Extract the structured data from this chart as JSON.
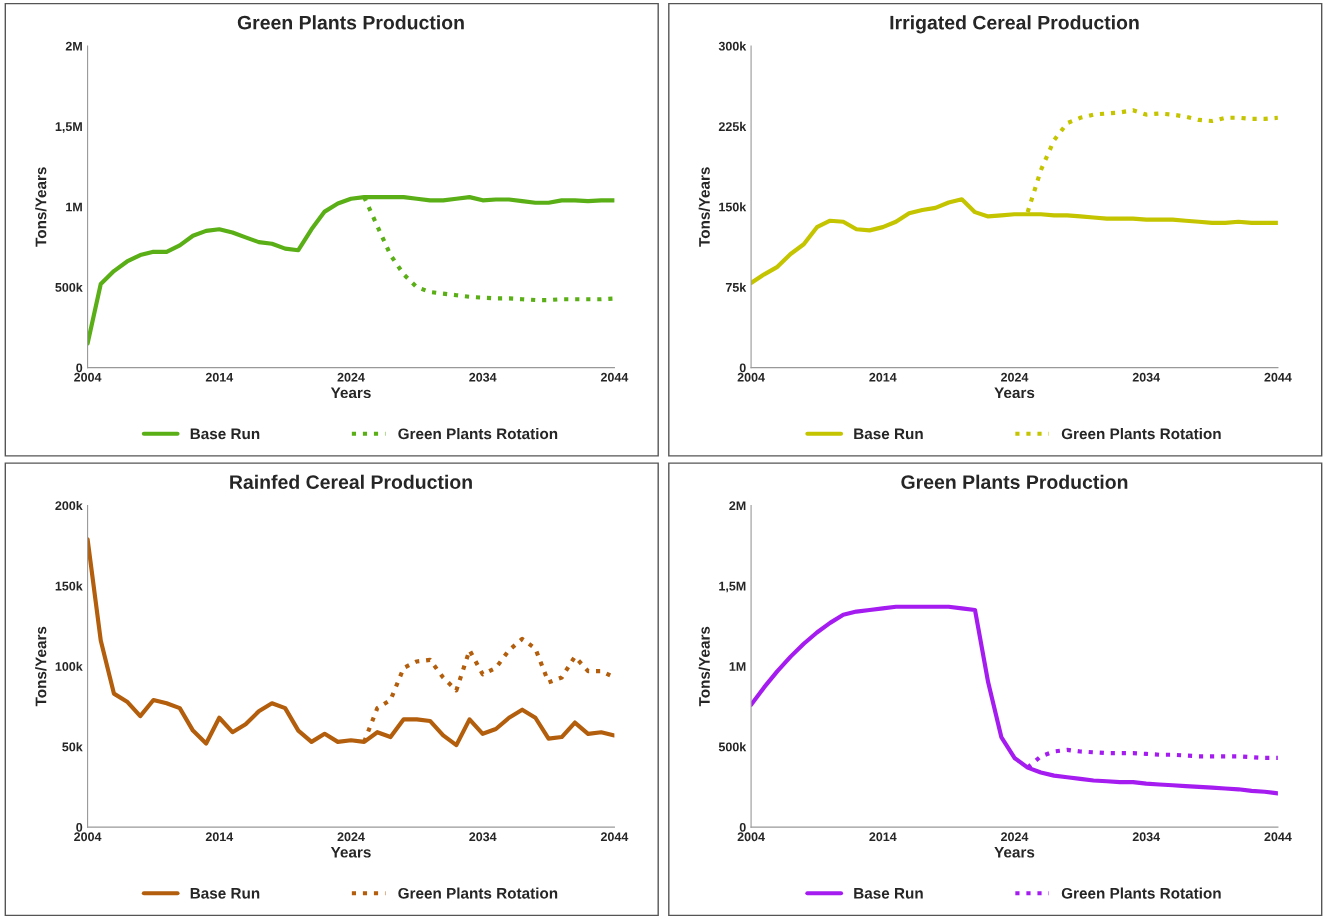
{
  "chart_data": [
    {
      "type": "line",
      "title": "Green Plants Production",
      "xlabel": "Years",
      "ylabel": "Tons/Years",
      "x": [
        2004,
        2005,
        2006,
        2007,
        2008,
        2009,
        2010,
        2011,
        2012,
        2013,
        2014,
        2015,
        2016,
        2017,
        2018,
        2019,
        2020,
        2021,
        2022,
        2023,
        2024,
        2025,
        2026,
        2027,
        2028,
        2029,
        2030,
        2031,
        2032,
        2033,
        2034,
        2035,
        2036,
        2037,
        2038,
        2039,
        2040,
        2041,
        2042,
        2043,
        2044
      ],
      "series": [
        {
          "name": "Base Run",
          "color": "#5aae16",
          "line_style": "solid",
          "values": [
            150000,
            520000,
            600000,
            660000,
            700000,
            720000,
            720000,
            760000,
            820000,
            850000,
            860000,
            840000,
            810000,
            780000,
            770000,
            740000,
            730000,
            860000,
            970000,
            1020000,
            1050000,
            1060000,
            1060000,
            1060000,
            1060000,
            1050000,
            1040000,
            1040000,
            1050000,
            1060000,
            1040000,
            1045000,
            1045000,
            1035000,
            1025000,
            1025000,
            1040000,
            1040000,
            1035000,
            1040000,
            1040000
          ]
        },
        {
          "name": "Green Plants Rotation",
          "color": "#5aae16",
          "line_style": "dotted",
          "x": [
            2025,
            2026,
            2027,
            2028,
            2029,
            2030,
            2031,
            2032,
            2033,
            2034,
            2035,
            2036,
            2037,
            2038,
            2039,
            2040,
            2041,
            2042,
            2043,
            2044
          ],
          "values": [
            1060000,
            880000,
            700000,
            580000,
            500000,
            470000,
            460000,
            450000,
            440000,
            435000,
            430000,
            430000,
            425000,
            420000,
            420000,
            425000,
            425000,
            425000,
            425000,
            430000
          ]
        }
      ],
      "xlim": [
        2004,
        2044
      ],
      "xticks": [
        2004,
        2014,
        2024,
        2034,
        2044
      ],
      "ylim": [
        0,
        2000000
      ],
      "yticks": [
        {
          "value": 0,
          "label": "0"
        },
        {
          "value": 500000,
          "label": "500k"
        },
        {
          "value": 1000000,
          "label": "1M"
        },
        {
          "value": 1500000,
          "label": "1,5M"
        },
        {
          "value": 2000000,
          "label": "2M"
        }
      ],
      "grid": false,
      "legend": "bottom"
    },
    {
      "type": "line",
      "title": "Irrigated Cereal Production",
      "xlabel": "Years",
      "ylabel": "Tons/Years",
      "x": [
        2004,
        2005,
        2006,
        2007,
        2008,
        2009,
        2010,
        2011,
        2012,
        2013,
        2014,
        2015,
        2016,
        2017,
        2018,
        2019,
        2020,
        2021,
        2022,
        2023,
        2024,
        2025,
        2026,
        2027,
        2028,
        2029,
        2030,
        2031,
        2032,
        2033,
        2034,
        2035,
        2036,
        2037,
        2038,
        2039,
        2040,
        2041,
        2042,
        2043,
        2044
      ],
      "series": [
        {
          "name": "Base Run",
          "color": "#c4c400",
          "line_style": "solid",
          "values": [
            79000,
            87000,
            94000,
            106000,
            115000,
            131000,
            137000,
            136000,
            129000,
            128000,
            131000,
            136000,
            144000,
            147000,
            149000,
            154000,
            157000,
            145000,
            141000,
            142000,
            143000,
            143000,
            143000,
            142000,
            142000,
            141000,
            140000,
            139000,
            139000,
            139000,
            138000,
            138000,
            138000,
            137000,
            136000,
            135000,
            135000,
            136000,
            135000,
            135000,
            135000
          ]
        },
        {
          "name": "Green Plants Rotation",
          "color": "#c4c400",
          "line_style": "dotted",
          "x": [
            2025,
            2026,
            2027,
            2028,
            2029,
            2030,
            2031,
            2032,
            2033,
            2034,
            2035,
            2036,
            2037,
            2038,
            2039,
            2040,
            2041,
            2042,
            2043,
            2044
          ],
          "values": [
            145000,
            184000,
            212000,
            228000,
            233000,
            236000,
            237000,
            238000,
            240000,
            236000,
            237000,
            236000,
            234000,
            231000,
            230000,
            233000,
            233000,
            232000,
            232000,
            233000
          ]
        }
      ],
      "xlim": [
        2004,
        2044
      ],
      "xticks": [
        2004,
        2014,
        2024,
        2034,
        2044
      ],
      "ylim": [
        0,
        300000
      ],
      "yticks": [
        {
          "value": 0,
          "label": "0"
        },
        {
          "value": 75000,
          "label": "75k"
        },
        {
          "value": 150000,
          "label": "150k"
        },
        {
          "value": 225000,
          "label": "225k"
        },
        {
          "value": 300000,
          "label": "300k"
        }
      ],
      "grid": false,
      "legend": "bottom"
    },
    {
      "type": "line",
      "title": "Rainfed Cereal Production",
      "xlabel": "Years",
      "ylabel": "Tons/Years",
      "x": [
        2004,
        2005,
        2006,
        2007,
        2008,
        2009,
        2010,
        2011,
        2012,
        2013,
        2014,
        2015,
        2016,
        2017,
        2018,
        2019,
        2020,
        2021,
        2022,
        2023,
        2024,
        2025,
        2026,
        2027,
        2028,
        2029,
        2030,
        2031,
        2032,
        2033,
        2034,
        2035,
        2036,
        2037,
        2038,
        2039,
        2040,
        2041,
        2042,
        2043,
        2044
      ],
      "series": [
        {
          "name": "Base Run",
          "color": "#b35e0c",
          "line_style": "solid",
          "values": [
            179000,
            116000,
            83000,
            78000,
            69000,
            79000,
            77000,
            74000,
            60000,
            52000,
            68000,
            59000,
            64000,
            72000,
            77000,
            74000,
            60000,
            53000,
            58000,
            53000,
            54000,
            53000,
            59000,
            56000,
            67000,
            67000,
            66000,
            57000,
            51000,
            67000,
            58000,
            61000,
            68000,
            73000,
            68000,
            55000,
            56000,
            65000,
            58000,
            59000,
            57000
          ]
        },
        {
          "name": "Green Plants Rotation",
          "color": "#b35e0c",
          "line_style": "dotted",
          "x": [
            2025,
            2026,
            2027,
            2028,
            2029,
            2030,
            2031,
            2032,
            2033,
            2034,
            2035,
            2036,
            2037,
            2038,
            2039,
            2040,
            2041,
            2042,
            2043,
            2044
          ],
          "values": [
            53000,
            74000,
            79000,
            99000,
            103000,
            104000,
            93000,
            85000,
            110000,
            95000,
            99000,
            110000,
            117000,
            111000,
            90000,
            93000,
            106000,
            97000,
            97000,
            93000
          ]
        }
      ],
      "xlim": [
        2004,
        2044
      ],
      "xticks": [
        2004,
        2014,
        2024,
        2034,
        2044
      ],
      "ylim": [
        0,
        200000
      ],
      "yticks": [
        {
          "value": 0,
          "label": "0"
        },
        {
          "value": 50000,
          "label": "50k"
        },
        {
          "value": 100000,
          "label": "100k"
        },
        {
          "value": 150000,
          "label": "150k"
        },
        {
          "value": 200000,
          "label": "200k"
        }
      ],
      "grid": false,
      "legend": "bottom"
    },
    {
      "type": "line",
      "title": "Green Plants Production",
      "xlabel": "Years",
      "ylabel": "Tons/Years",
      "x": [
        2004,
        2005,
        2006,
        2007,
        2008,
        2009,
        2010,
        2011,
        2012,
        2013,
        2014,
        2015,
        2016,
        2017,
        2018,
        2019,
        2020,
        2021,
        2022,
        2023,
        2024,
        2025,
        2026,
        2027,
        2028,
        2029,
        2030,
        2031,
        2032,
        2033,
        2034,
        2035,
        2036,
        2037,
        2038,
        2039,
        2040,
        2041,
        2042,
        2043,
        2044
      ],
      "series": [
        {
          "name": "Base Run",
          "color": "#a41cf0",
          "line_style": "solid",
          "values": [
            760000,
            870000,
            970000,
            1060000,
            1140000,
            1210000,
            1270000,
            1320000,
            1340000,
            1350000,
            1360000,
            1370000,
            1370000,
            1370000,
            1370000,
            1370000,
            1360000,
            1350000,
            900000,
            560000,
            430000,
            370000,
            340000,
            320000,
            310000,
            300000,
            290000,
            285000,
            280000,
            280000,
            270000,
            265000,
            260000,
            255000,
            250000,
            245000,
            240000,
            235000,
            225000,
            220000,
            210000
          ]
        },
        {
          "name": "Green Plants Rotation",
          "color": "#a41cf0",
          "line_style": "dotted",
          "x": [
            2025,
            2026,
            2027,
            2028,
            2029,
            2030,
            2031,
            2032,
            2033,
            2034,
            2035,
            2036,
            2037,
            2038,
            2039,
            2040,
            2041,
            2042,
            2043,
            2044
          ],
          "values": [
            370000,
            440000,
            470000,
            480000,
            470000,
            465000,
            460000,
            460000,
            460000,
            455000,
            450000,
            450000,
            445000,
            440000,
            440000,
            440000,
            440000,
            435000,
            430000,
            430000
          ]
        }
      ],
      "xlim": [
        2004,
        2044
      ],
      "xticks": [
        2004,
        2014,
        2024,
        2034,
        2044
      ],
      "ylim": [
        0,
        2000000
      ],
      "yticks": [
        {
          "value": 0,
          "label": "0"
        },
        {
          "value": 500000,
          "label": "500k"
        },
        {
          "value": 1000000,
          "label": "1M"
        },
        {
          "value": 1500000,
          "label": "1,5M"
        },
        {
          "value": 2000000,
          "label": "2M"
        }
      ],
      "grid": false,
      "legend": "bottom"
    }
  ]
}
